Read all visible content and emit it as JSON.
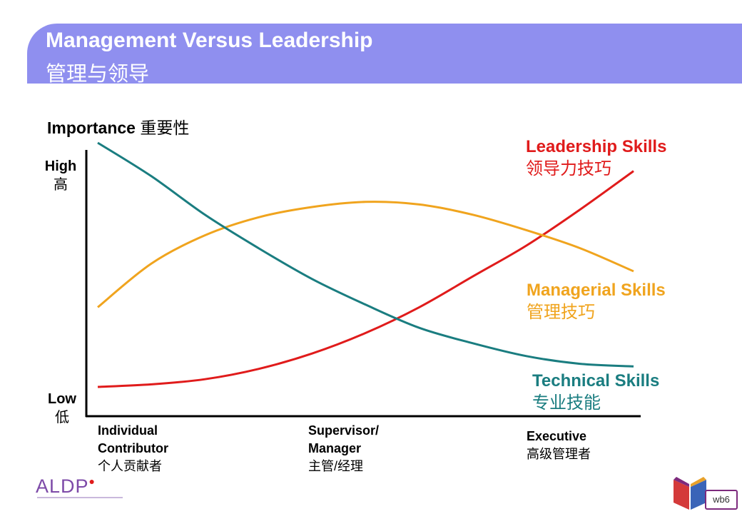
{
  "header": {
    "title_en": "Management Versus Leadership",
    "title_zh": "管理与领导"
  },
  "chart_data": {
    "type": "line",
    "title": "Management Versus Leadership 管理与领导",
    "ylabel": {
      "en": "Importance",
      "zh": "重要性"
    },
    "y_ticks": [
      {
        "en": "High",
        "zh": "高"
      },
      {
        "en": "Low",
        "zh": "低"
      }
    ],
    "x_ticks": [
      {
        "lines": [
          "Individual",
          "Contributor"
        ],
        "zh": "个人贡献者"
      },
      {
        "lines": [
          "Supervisor/",
          "Manager"
        ],
        "zh": "主管/经理"
      },
      {
        "lines": [
          "Executive"
        ],
        "zh": "高级管理者"
      }
    ],
    "y_range_note": "qualitative 0 (Low) to 10 (High)",
    "x": [
      0,
      0.1,
      0.2,
      0.3,
      0.4,
      0.5,
      0.6,
      0.7,
      0.8,
      0.9,
      1.0
    ],
    "series": [
      {
        "name": "Leadership Skills",
        "name_zh": "领导力技巧",
        "color": "#e01b1b",
        "values": [
          0.5,
          0.6,
          0.8,
          1.2,
          1.8,
          2.6,
          3.6,
          4.8,
          6.0,
          7.4,
          8.9
        ]
      },
      {
        "name": "Managerial Skills",
        "name_zh": "管理技巧",
        "color": "#f0a41e",
        "values": [
          3.6,
          5.3,
          6.4,
          7.1,
          7.5,
          7.7,
          7.6,
          7.2,
          6.6,
          5.9,
          5.0
        ]
      },
      {
        "name": "Technical Skills",
        "name_zh": "专业技能",
        "color": "#1a7d80",
        "values": [
          10.0,
          8.7,
          7.2,
          5.9,
          4.7,
          3.7,
          2.8,
          2.2,
          1.7,
          1.4,
          1.3
        ]
      }
    ]
  },
  "footer": {
    "logo_text": "ALDP",
    "badge": "wb6"
  }
}
